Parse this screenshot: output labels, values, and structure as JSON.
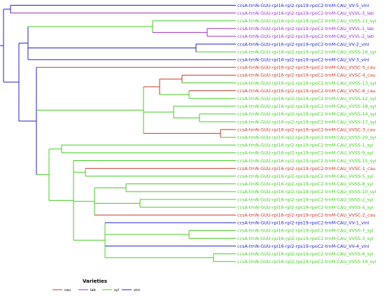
{
  "colors": {
    "cau": "#c0392b",
    "lab": "#9b30c8",
    "syl": "#44cc22",
    "vini": "#2222cc"
  },
  "legend": {
    "title": "Varieties",
    "items": [
      {
        "key": "cau",
        "label": "cau"
      },
      {
        "key": "lab",
        "label": "lab"
      },
      {
        "key": "syl",
        "label": "syl"
      },
      {
        "key": "vini",
        "label": "vini"
      }
    ]
  },
  "leaves": [
    {
      "label": "ccsA-trnN-GUU-rpl16-rpl2-rps19-rpoC2-trnM-CAU_VV-5_vini",
      "variety": "vini"
    },
    {
      "label": "ccsA-trnN-GUU-rpl16-rpl2-rps19-rpoC2-trnM-CAU_VVVL-3_lab",
      "variety": "lab"
    },
    {
      "label": "ccsA-trnN-GUU-rpl16-rpl2-rps19-rpoC2-trnM-CAU_VVSS-11_syl",
      "variety": "syl"
    },
    {
      "label": "ccsA-trnN-GUU-rpl16-rpl2-rps19-rpoC2-trnM-CAU_VVVL-1_lab",
      "variety": "lab"
    },
    {
      "label": "ccsA-trnN-GUU-rpl16-rpl2-rps19-rpoC2-trnM-CAU_VVVL-2_lab",
      "variety": "lab"
    },
    {
      "label": "ccsA-trnN-GUU-rpl16-rpl2-rps19-rpoC2-trnM-CAU_VV-2_vini",
      "variety": "vini"
    },
    {
      "label": "ccsA-trnN-GUU-rpl16-rpl2-rps19-rpoC2-trnM-CAU_VVSS-16_syl",
      "variety": "syl"
    },
    {
      "label": "ccsA-trnN-GUU-rpl16-rpl2-rps19-rpoC2-trnM-CAU_VV-3_vini",
      "variety": "vini"
    },
    {
      "label": "ccsA-trnN-GUU-rpl16-rpl2-rps19-rpoC2-trnM-CAU_VVSC-5_cau",
      "variety": "cau"
    },
    {
      "label": "ccsA-trnN-GUU-rpl16-rpl2-rps19-rpoC2-trnM-CAU_VVSC-4_cau",
      "variety": "cau"
    },
    {
      "label": "ccsA-trnN-GUU-rpl16-rpl2-rps19-rpoC2-trnM-CAU_VVSS-13_syl",
      "variety": "syl"
    },
    {
      "label": "ccsA-trnN-GUU-rpl16-rpl2-rps19-rpoC2-trnM-CAU_VVSC-6_cau",
      "variety": "cau"
    },
    {
      "label": "ccsA-trnN-GUU-rpl16-rpl2-rps19-rpoC2-trnM-CAU_VVSS-12_syl",
      "variety": "syl"
    },
    {
      "label": "ccsA-trnN-GUU-rpl16-rpl2-rps19-rpoC2-trnM-CAU_VVSS-18_syl",
      "variety": "syl"
    },
    {
      "label": "ccsA-trnN-GUU-rpl16-rpl2-rps19-rpoC2-trnM-CAU_VVSS-14_syl",
      "variety": "syl"
    },
    {
      "label": "ccsA-trnN-GUU-rpl16-rpl2-rps19-rpoC2-trnM-CAU_VVSS-17_syl",
      "variety": "syl"
    },
    {
      "label": "ccsA-trnN-GUU-rpl16-rpl2-rps19-rpoC2-trnM-CAU_VVSC-3_cau",
      "variety": "cau"
    },
    {
      "label": "ccsA-trnN-GUU-rpl16-rpl2-rps19-rpoC2-trnM-CAU_VVSS-20_syl",
      "variety": "syl"
    },
    {
      "label": "ccsA-trnN-GUU-rpl16-rpl2-rps19-rpoC2-trnM-CAU_VVSS-1_syl",
      "variety": "syl"
    },
    {
      "label": "ccsA-trnN-GUU-rpl16-rpl2-rps19-rpoC2-trnM-CAU_VVSS-9_syl",
      "variety": "syl"
    },
    {
      "label": "ccsA-trnN-GUU-rpl16-rpl2-rps19-rpoC2-trnM-CAU_VVSS-15_syl",
      "variety": "syl"
    },
    {
      "label": "ccsA-trnN-GUU-rpl16-rpl2-rps19-rpoC2-trnM-CAU_VVSC-1_cau",
      "variety": "cau"
    },
    {
      "label": "ccsA-trnN-GUU-rpl16-rpl2-rps19-rpoC2-trnM-CAU_VVSS-5_syl",
      "variety": "syl"
    },
    {
      "label": "ccsA-trnN-GUU-rpl16-rpl2-rps19-rpoC2-trnM-CAU_VVSS-8_syl",
      "variety": "syl"
    },
    {
      "label": "ccsA-trnN-GUU-rpl16-rpl2-rps19-rpoC2-trnM-CAU_VVSS-10_syl",
      "variety": "syl"
    },
    {
      "label": "ccsA-trnN-GUU-rpl16-rpl2-rps19-rpoC2-trnM-CAU_VVSS-2_syl",
      "variety": "syl"
    },
    {
      "label": "ccsA-trnN-GUU-rpl16-rpl2-rps19-rpoC2-trnM-CAU_VVSS-4_syl",
      "variety": "syl"
    },
    {
      "label": "ccsA-trnN-GUU-rpl16-rpl2-rps19-rpoC2-trnM-CAU_VVSC-2_cau",
      "variety": "cau"
    },
    {
      "label": "ccsA-trnN-GUU-rpl16-rpl2-rps19-rpoC2-trnM-CAU_VV-1_vini",
      "variety": "vini"
    },
    {
      "label": "ccsA-trnN-GUU-rpl16-rpl2-rps19-rpoC2-trnM-CAU_VVSS-7_syl",
      "variety": "syl"
    },
    {
      "label": "ccsA-trnN-GUU-rpl16-rpl2-rps19-rpoC2-trnM-CAU_VVSS-3_syl",
      "variety": "syl"
    },
    {
      "label": "ccsA-trnN-GUU-rpl16-rpl2-rps19-rpoC2-trnM-CAU_VV-4_vini",
      "variety": "vini"
    },
    {
      "label": "ccsA-trnN-GUU-rpl16-rpl2-rps19-rpoC2-trnM-CAU_VVSS-6_syl",
      "variety": "syl"
    },
    {
      "label": "ccsA-trnN-GUU-rpl16-rpl2-rps19-rpoC2-trnM-CAU_VVSS-19_syl",
      "variety": "syl"
    }
  ]
}
